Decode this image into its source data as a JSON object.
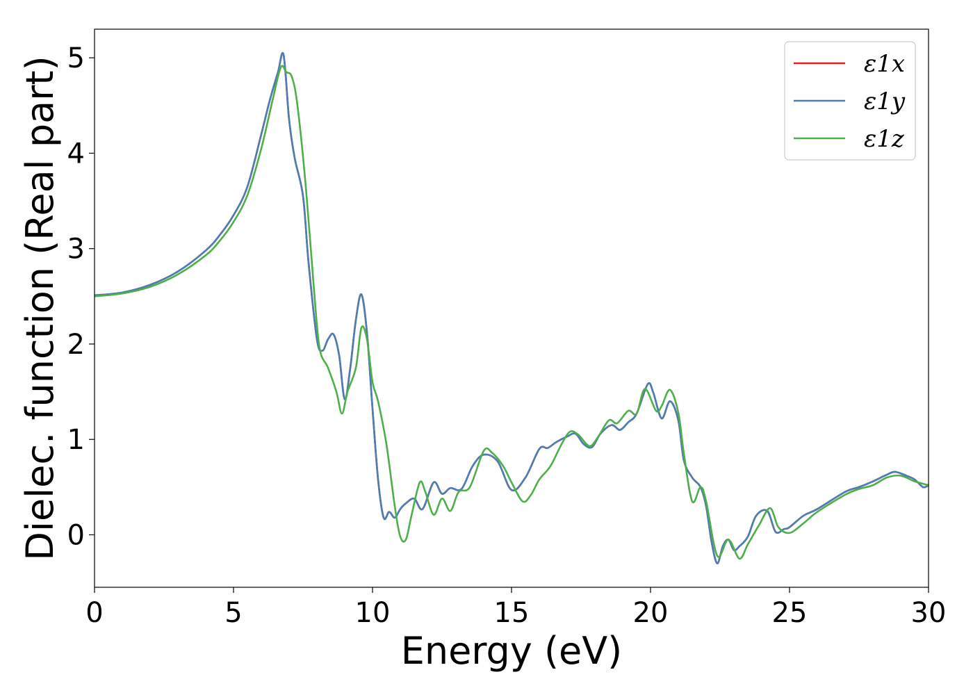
{
  "chart_data": {
    "type": "line",
    "title": "",
    "xlabel": "Energy (eV)",
    "ylabel": "Dielec. function (Real part)",
    "xlim": [
      0,
      30
    ],
    "ylim": [
      -0.55,
      5.3
    ],
    "xticks": [
      0,
      5,
      10,
      15,
      20,
      25,
      30
    ],
    "yticks": [
      0,
      1,
      2,
      3,
      4,
      5
    ],
    "xtick_labels": [
      "0",
      "5",
      "10",
      "15",
      "20",
      "25",
      "30"
    ],
    "ytick_labels": [
      "0",
      "1",
      "2",
      "3",
      "4",
      "5"
    ],
    "grid": false,
    "legend_position": "top-right",
    "series": [
      {
        "name": "ε1x",
        "color": "#e41a1c",
        "x": [
          0,
          1,
          2,
          3,
          4,
          4.5,
          5,
          5.5,
          6,
          6.3,
          6.6,
          6.8,
          7,
          7.2,
          7.5,
          7.7,
          8,
          8.2,
          8.4,
          8.6,
          8.8,
          9,
          9.2,
          9.4,
          9.6,
          9.8,
          10,
          10.2,
          10.4,
          10.6,
          10.8,
          11,
          11.2,
          11.5,
          11.8,
          12.2,
          12.5,
          12.8,
          13.2,
          13.6,
          14,
          14.5,
          15,
          15.5,
          16,
          16.3,
          16.6,
          17,
          17.3,
          17.6,
          17.9,
          18.2,
          18.6,
          18.9,
          19.2,
          19.5,
          19.9,
          20.1,
          20.4,
          20.7,
          21,
          21.2,
          21.5,
          21.8,
          22,
          22.2,
          22.4,
          22.6,
          22.8,
          23,
          23.2,
          23.5,
          23.8,
          24.2,
          24.5,
          24.8,
          25,
          25.5,
          26,
          27,
          27.5,
          28,
          28.5,
          28.8,
          29.2,
          29.5,
          29.8,
          30
        ],
        "y": [
          2.51,
          2.54,
          2.62,
          2.76,
          2.98,
          3.14,
          3.35,
          3.65,
          4.2,
          4.55,
          4.85,
          5.03,
          4.35,
          3.95,
          3.55,
          2.85,
          2.05,
          1.93,
          2.05,
          2.1,
          1.88,
          1.42,
          1.75,
          2.25,
          2.52,
          2.12,
          1.32,
          0.58,
          0.18,
          0.24,
          0.18,
          0.27,
          0.33,
          0.38,
          0.27,
          0.55,
          0.43,
          0.49,
          0.48,
          0.72,
          0.84,
          0.77,
          0.47,
          0.6,
          0.9,
          0.91,
          0.97,
          1.03,
          1.06,
          0.95,
          0.92,
          1.06,
          1.15,
          1.1,
          1.18,
          1.27,
          1.58,
          1.49,
          1.22,
          1.4,
          1.2,
          0.78,
          0.6,
          0.5,
          0.3,
          -0.08,
          -0.3,
          -0.12,
          -0.05,
          -0.16,
          -0.12,
          -0.02,
          0.2,
          0.25,
          0.03,
          0.06,
          0.08,
          0.2,
          0.27,
          0.45,
          0.5,
          0.56,
          0.63,
          0.66,
          0.62,
          0.58,
          0.5,
          0.52
        ]
      },
      {
        "name": "ε1y",
        "color": "#4a7fb5",
        "x": [
          0,
          1,
          2,
          3,
          4,
          4.5,
          5,
          5.5,
          6,
          6.3,
          6.6,
          6.8,
          7,
          7.2,
          7.5,
          7.7,
          8,
          8.2,
          8.4,
          8.6,
          8.8,
          9,
          9.2,
          9.4,
          9.6,
          9.8,
          10,
          10.2,
          10.4,
          10.6,
          10.8,
          11,
          11.2,
          11.5,
          11.8,
          12.2,
          12.5,
          12.8,
          13.2,
          13.6,
          14,
          14.5,
          15,
          15.5,
          16,
          16.3,
          16.6,
          17,
          17.3,
          17.6,
          17.9,
          18.2,
          18.6,
          18.9,
          19.2,
          19.5,
          19.9,
          20.1,
          20.4,
          20.7,
          21,
          21.2,
          21.5,
          21.8,
          22,
          22.2,
          22.4,
          22.6,
          22.8,
          23,
          23.2,
          23.5,
          23.8,
          24.2,
          24.5,
          24.8,
          25,
          25.5,
          26,
          27,
          27.5,
          28,
          28.5,
          28.8,
          29.2,
          29.5,
          29.8,
          30
        ],
        "y": [
          2.51,
          2.54,
          2.62,
          2.76,
          2.98,
          3.14,
          3.35,
          3.65,
          4.2,
          4.55,
          4.85,
          5.03,
          4.35,
          3.95,
          3.55,
          2.85,
          2.05,
          1.93,
          2.05,
          2.1,
          1.88,
          1.42,
          1.75,
          2.25,
          2.52,
          2.12,
          1.32,
          0.58,
          0.18,
          0.24,
          0.18,
          0.27,
          0.33,
          0.38,
          0.27,
          0.55,
          0.43,
          0.49,
          0.48,
          0.72,
          0.84,
          0.77,
          0.47,
          0.6,
          0.9,
          0.91,
          0.97,
          1.03,
          1.06,
          0.95,
          0.92,
          1.06,
          1.15,
          1.1,
          1.18,
          1.27,
          1.58,
          1.49,
          1.22,
          1.4,
          1.2,
          0.78,
          0.6,
          0.5,
          0.3,
          -0.08,
          -0.3,
          -0.12,
          -0.05,
          -0.16,
          -0.12,
          -0.02,
          0.2,
          0.25,
          0.03,
          0.06,
          0.08,
          0.2,
          0.27,
          0.45,
          0.5,
          0.56,
          0.63,
          0.66,
          0.62,
          0.58,
          0.5,
          0.52
        ]
      },
      {
        "name": "ε1z",
        "color": "#4daf4a",
        "x": [
          0,
          1,
          2,
          3,
          4,
          4.5,
          5,
          5.5,
          6,
          6.4,
          6.7,
          6.9,
          7.1,
          7.3,
          7.6,
          7.9,
          8.1,
          8.4,
          8.7,
          8.9,
          9.1,
          9.4,
          9.6,
          9.8,
          10,
          10.2,
          10.5,
          10.8,
          11,
          11.2,
          11.4,
          11.7,
          11.9,
          12.2,
          12.5,
          12.8,
          13.1,
          13.5,
          14,
          14.3,
          14.7,
          15,
          15.4,
          15.7,
          16,
          16.4,
          16.8,
          17.1,
          17.4,
          17.8,
          18.1,
          18.5,
          18.8,
          19.2,
          19.5,
          19.8,
          20.2,
          20.4,
          20.7,
          21,
          21.2,
          21.5,
          21.8,
          22,
          22.4,
          22.8,
          23.2,
          23.5,
          23.9,
          24.3,
          24.6,
          25,
          25.5,
          26,
          27,
          27.5,
          28,
          28.5,
          29,
          29.5,
          30
        ],
        "y": [
          2.5,
          2.53,
          2.6,
          2.73,
          2.93,
          3.08,
          3.28,
          3.56,
          4.05,
          4.55,
          4.9,
          4.85,
          4.8,
          4.5,
          3.65,
          2.55,
          1.95,
          1.75,
          1.5,
          1.27,
          1.5,
          1.75,
          2.17,
          2.05,
          1.6,
          1.4,
          0.95,
          0.3,
          -0.02,
          -0.05,
          0.2,
          0.55,
          0.45,
          0.21,
          0.38,
          0.25,
          0.45,
          0.5,
          0.88,
          0.86,
          0.72,
          0.55,
          0.35,
          0.42,
          0.58,
          0.72,
          0.95,
          1.08,
          1.05,
          0.93,
          1.02,
          1.2,
          1.17,
          1.3,
          1.27,
          1.53,
          1.3,
          1.35,
          1.52,
          1.28,
          0.85,
          0.35,
          0.5,
          0.35,
          -0.22,
          -0.05,
          -0.25,
          -0.1,
          0.1,
          0.28,
          0.08,
          0.02,
          0.12,
          0.24,
          0.42,
          0.48,
          0.52,
          0.6,
          0.62,
          0.56,
          0.52
        ]
      }
    ]
  }
}
